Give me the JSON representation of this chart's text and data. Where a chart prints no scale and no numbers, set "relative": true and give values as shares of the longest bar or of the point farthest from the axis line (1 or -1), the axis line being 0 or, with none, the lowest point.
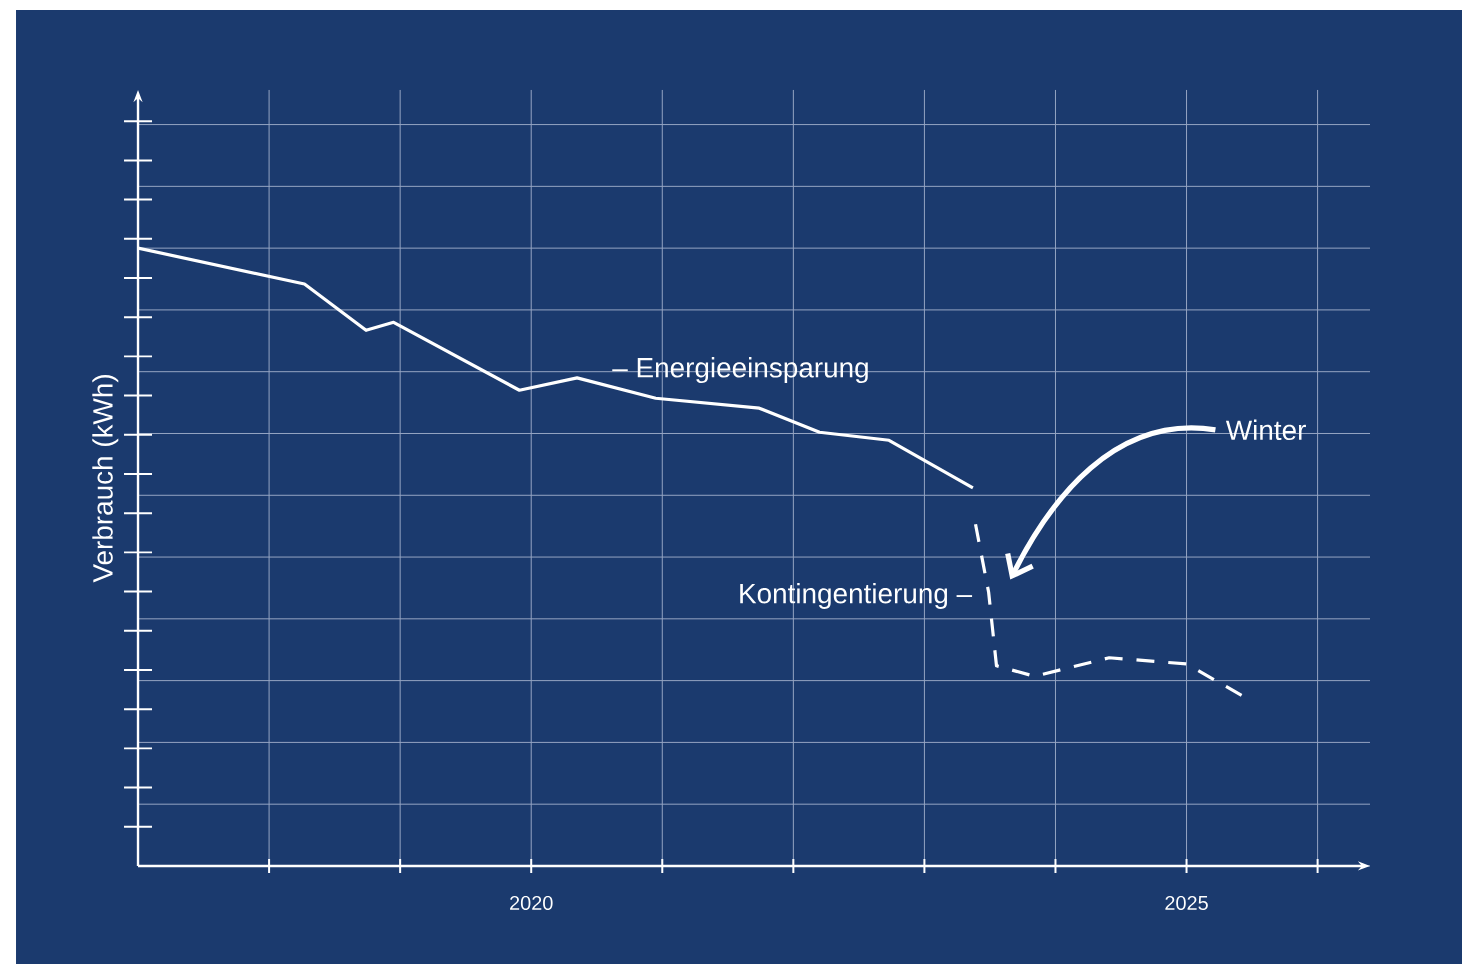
{
  "chart_data": {
    "type": "line",
    "relative": true,
    "ylabel": "Verbrauch (kWh)",
    "xlim": [
      2017,
      2026.4
    ],
    "xticks": [
      {
        "value": 2018,
        "label": null
      },
      {
        "value": 2019,
        "label": null
      },
      {
        "value": 2020,
        "label": "2020"
      },
      {
        "value": 2021,
        "label": null
      },
      {
        "value": 2022,
        "label": null
      },
      {
        "value": 2023,
        "label": null
      },
      {
        "value": 2024,
        "label": null
      },
      {
        "value": 2025,
        "label": "2025"
      },
      {
        "value": 2026,
        "label": null
      }
    ],
    "grid": true,
    "series": [
      {
        "color": "#ffffff",
        "line_style": "solid",
        "x": [
          2017,
          2018.27,
          2018.74,
          2018.95,
          2019.91,
          2020.35,
          2020.95,
          2021.74,
          2022.2,
          2022.73,
          2023.37
        ],
        "values": [
          1.0,
          0.942,
          0.867,
          0.88,
          0.77,
          0.79,
          0.757,
          0.741,
          0.702,
          0.689,
          0.612
        ]
      },
      {
        "color": "#ffffff",
        "line_style": "dashed",
        "x": [
          2023.39,
          2023.49,
          2023.55,
          2023.84,
          2024.41,
          2025.0,
          2025.43
        ],
        "values": [
          0.553,
          0.443,
          0.324,
          0.307,
          0.337,
          0.327,
          0.275
        ]
      }
    ],
    "annotations": [
      "– Energieeinsparung",
      "Kontingentierung –",
      "Winter"
    ]
  }
}
